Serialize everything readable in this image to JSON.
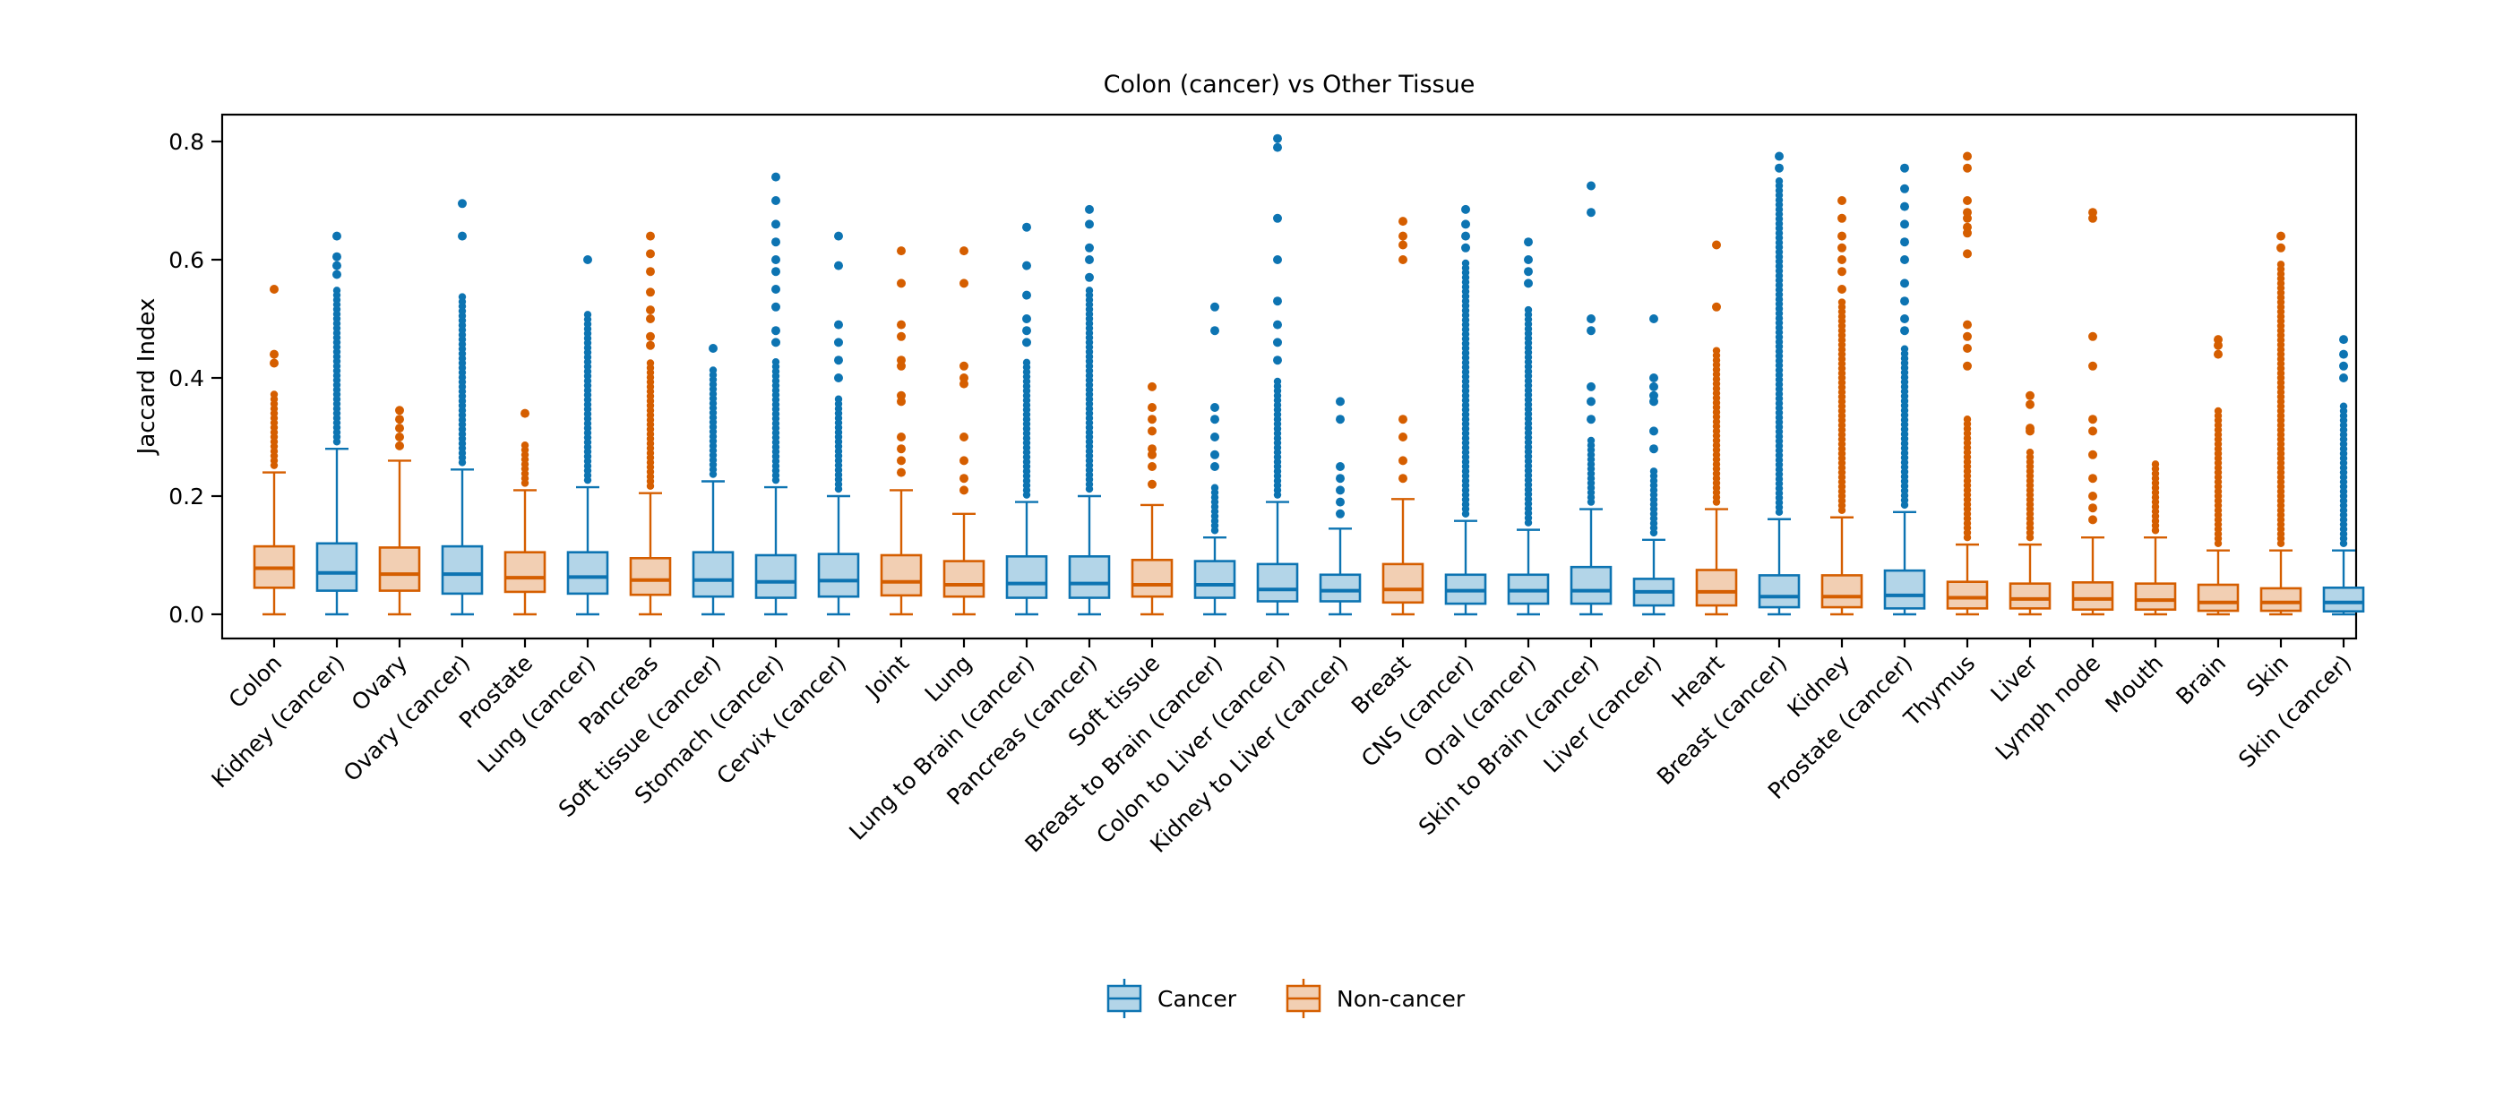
{
  "title": "Colon (cancer) vs Other Tissue",
  "ylabel": "Jaccard Index",
  "colors": {
    "cancer_edge": "#0d74b2",
    "cancer_fill": "#b3d5e8",
    "noncancer_edge": "#d55e00",
    "noncancer_fill": "#f2cfb3",
    "axis": "#000000",
    "background": "#ffffff"
  },
  "legend": {
    "items": [
      {
        "label": "Cancer",
        "group": "Cancer"
      },
      {
        "label": "Non-cancer",
        "group": "Non-cancer"
      }
    ]
  },
  "chart_data": {
    "type": "boxplot",
    "title": "Colon (cancer) vs Other Tissue",
    "xlabel": "",
    "ylabel": "Jaccard Index",
    "yticks": [
      0.0,
      0.2,
      0.4,
      0.6,
      0.8
    ],
    "ylim": [
      -0.041,
      0.845
    ],
    "grid": false,
    "legend_position": "bottom-center",
    "groups": {
      "Cancer": "blue",
      "Non-cancer": "orange"
    },
    "categories": [
      {
        "label": "Colon",
        "group": "Non-cancer",
        "whisker_low": 0,
        "q1": 0.045,
        "median": 0.078,
        "q3": 0.115,
        "whisker_high": 0.24,
        "outliers_dense_to": 0.38,
        "outliers": [
          0.425,
          0.44,
          0.55
        ]
      },
      {
        "label": "Kidney (cancer)",
        "group": "Cancer",
        "whisker_low": 0,
        "q1": 0.04,
        "median": 0.07,
        "q3": 0.12,
        "whisker_high": 0.28,
        "outliers_dense_to": 0.55,
        "outliers": [
          0.575,
          0.59,
          0.605,
          0.64
        ]
      },
      {
        "label": "Ovary",
        "group": "Non-cancer",
        "whisker_low": 0,
        "q1": 0.04,
        "median": 0.068,
        "q3": 0.113,
        "whisker_high": 0.26,
        "outliers_dense_to": 0.26,
        "outliers": [
          0.285,
          0.3,
          0.315,
          0.33,
          0.345
        ]
      },
      {
        "label": "Ovary (cancer)",
        "group": "Cancer",
        "whisker_low": 0,
        "q1": 0.035,
        "median": 0.068,
        "q3": 0.115,
        "whisker_high": 0.245,
        "outliers_dense_to": 0.54,
        "outliers": [
          0.64,
          0.695
        ]
      },
      {
        "label": "Prostate",
        "group": "Non-cancer",
        "whisker_low": 0,
        "q1": 0.038,
        "median": 0.062,
        "q3": 0.105,
        "whisker_high": 0.21,
        "outliers_dense_to": 0.29,
        "outliers": [
          0.34
        ]
      },
      {
        "label": "Lung (cancer)",
        "group": "Cancer",
        "whisker_low": 0,
        "q1": 0.035,
        "median": 0.063,
        "q3": 0.105,
        "whisker_high": 0.215,
        "outliers_dense_to": 0.51,
        "outliers": [
          0.6
        ]
      },
      {
        "label": "Pancreas",
        "group": "Non-cancer",
        "whisker_low": 0,
        "q1": 0.033,
        "median": 0.058,
        "q3": 0.095,
        "whisker_high": 0.205,
        "outliers_dense_to": 0.43,
        "outliers": [
          0.455,
          0.47,
          0.5,
          0.515,
          0.545,
          0.58,
          0.61,
          0.64
        ]
      },
      {
        "label": "Soft tissue (cancer)",
        "group": "Cancer",
        "whisker_low": 0,
        "q1": 0.03,
        "median": 0.058,
        "q3": 0.105,
        "whisker_high": 0.225,
        "outliers_dense_to": 0.42,
        "outliers": [
          0.45
        ]
      },
      {
        "label": "Stomach (cancer)",
        "group": "Cancer",
        "whisker_low": 0,
        "q1": 0.028,
        "median": 0.055,
        "q3": 0.1,
        "whisker_high": 0.215,
        "outliers_dense_to": 0.43,
        "outliers": [
          0.46,
          0.48,
          0.52,
          0.55,
          0.58,
          0.6,
          0.63,
          0.66,
          0.7,
          0.74
        ]
      },
      {
        "label": "Cervix (cancer)",
        "group": "Cancer",
        "whisker_low": 0,
        "q1": 0.03,
        "median": 0.057,
        "q3": 0.102,
        "whisker_high": 0.2,
        "outliers_dense_to": 0.37,
        "outliers": [
          0.4,
          0.43,
          0.46,
          0.49,
          0.59,
          0.64
        ]
      },
      {
        "label": "Joint",
        "group": "Non-cancer",
        "whisker_low": 0,
        "q1": 0.032,
        "median": 0.055,
        "q3": 0.1,
        "whisker_high": 0.21,
        "outliers_dense_to": 0.21,
        "outliers": [
          0.24,
          0.26,
          0.28,
          0.3,
          0.36,
          0.37,
          0.42,
          0.43,
          0.47,
          0.49,
          0.56,
          0.615
        ]
      },
      {
        "label": "Lung",
        "group": "Non-cancer",
        "whisker_low": 0,
        "q1": 0.03,
        "median": 0.05,
        "q3": 0.09,
        "whisker_high": 0.17,
        "outliers_dense_to": 0.17,
        "outliers": [
          0.21,
          0.23,
          0.26,
          0.3,
          0.39,
          0.4,
          0.42,
          0.56,
          0.615
        ]
      },
      {
        "label": "Lung to Brain (cancer)",
        "group": "Cancer",
        "whisker_low": 0,
        "q1": 0.028,
        "median": 0.052,
        "q3": 0.098,
        "whisker_high": 0.19,
        "outliers_dense_to": 0.43,
        "outliers": [
          0.46,
          0.48,
          0.5,
          0.54,
          0.59,
          0.655
        ]
      },
      {
        "label": "Pancreas (cancer)",
        "group": "Cancer",
        "whisker_low": 0,
        "q1": 0.028,
        "median": 0.052,
        "q3": 0.098,
        "whisker_high": 0.2,
        "outliers_dense_to": 0.55,
        "outliers": [
          0.57,
          0.6,
          0.62,
          0.66,
          0.685
        ]
      },
      {
        "label": "Soft tissue",
        "group": "Non-cancer",
        "whisker_low": 0,
        "q1": 0.03,
        "median": 0.05,
        "q3": 0.092,
        "whisker_high": 0.185,
        "outliers_dense_to": 0.185,
        "outliers": [
          0.22,
          0.25,
          0.27,
          0.28,
          0.31,
          0.33,
          0.35,
          0.385
        ]
      },
      {
        "label": "Breast to Brain (cancer)",
        "group": "Cancer",
        "whisker_low": 0,
        "q1": 0.028,
        "median": 0.05,
        "q3": 0.09,
        "whisker_high": 0.13,
        "outliers_dense_to": 0.22,
        "outliers": [
          0.25,
          0.27,
          0.3,
          0.33,
          0.35,
          0.48,
          0.52
        ]
      },
      {
        "label": "Colon to Liver (cancer)",
        "group": "Cancer",
        "whisker_low": 0,
        "q1": 0.022,
        "median": 0.042,
        "q3": 0.085,
        "whisker_high": 0.19,
        "outliers_dense_to": 0.4,
        "outliers": [
          0.43,
          0.46,
          0.49,
          0.53,
          0.6,
          0.67,
          0.79,
          0.805
        ]
      },
      {
        "label": "Kidney to Liver (cancer)",
        "group": "Cancer",
        "whisker_low": 0,
        "q1": 0.022,
        "median": 0.04,
        "q3": 0.067,
        "whisker_high": 0.145,
        "outliers_dense_to": 0.145,
        "outliers": [
          0.17,
          0.19,
          0.21,
          0.23,
          0.25,
          0.33,
          0.36
        ]
      },
      {
        "label": "Breast",
        "group": "Non-cancer",
        "whisker_low": 0,
        "q1": 0.02,
        "median": 0.042,
        "q3": 0.085,
        "whisker_high": 0.195,
        "outliers_dense_to": 0.195,
        "outliers": [
          0.23,
          0.26,
          0.3,
          0.33,
          0.6,
          0.625,
          0.64,
          0.665
        ]
      },
      {
        "label": "CNS (cancer)",
        "group": "Cancer",
        "whisker_low": 0,
        "q1": 0.018,
        "median": 0.04,
        "q3": 0.067,
        "whisker_high": 0.158,
        "outliers_dense_to": 0.6,
        "outliers": [
          0.62,
          0.64,
          0.66,
          0.685
        ]
      },
      {
        "label": "Oral (cancer)",
        "group": "Cancer",
        "whisker_low": 0,
        "q1": 0.018,
        "median": 0.04,
        "q3": 0.067,
        "whisker_high": 0.143,
        "outliers_dense_to": 0.52,
        "outliers": [
          0.56,
          0.58,
          0.6,
          0.63
        ]
      },
      {
        "label": "Skin to Brain (cancer)",
        "group": "Cancer",
        "whisker_low": 0,
        "q1": 0.018,
        "median": 0.04,
        "q3": 0.08,
        "whisker_high": 0.178,
        "outliers_dense_to": 0.3,
        "outliers": [
          0.33,
          0.36,
          0.385,
          0.48,
          0.5,
          0.68,
          0.725
        ]
      },
      {
        "label": "Liver (cancer)",
        "group": "Cancer",
        "whisker_low": 0,
        "q1": 0.015,
        "median": 0.038,
        "q3": 0.06,
        "whisker_high": 0.126,
        "outliers_dense_to": 0.25,
        "outliers": [
          0.28,
          0.31,
          0.36,
          0.37,
          0.385,
          0.4,
          0.5
        ]
      },
      {
        "label": "Heart",
        "group": "Non-cancer",
        "whisker_low": 0,
        "q1": 0.015,
        "median": 0.038,
        "q3": 0.075,
        "whisker_high": 0.178,
        "outliers_dense_to": 0.45,
        "outliers": [
          0.52,
          0.625
        ]
      },
      {
        "label": "Breast (cancer)",
        "group": "Cancer",
        "whisker_low": 0,
        "q1": 0.012,
        "median": 0.03,
        "q3": 0.066,
        "whisker_high": 0.161,
        "outliers_dense_to": 0.74,
        "outliers": [
          0.755,
          0.775
        ]
      },
      {
        "label": "Kidney",
        "group": "Non-cancer",
        "whisker_low": 0,
        "q1": 0.012,
        "median": 0.03,
        "q3": 0.066,
        "whisker_high": 0.164,
        "outliers_dense_to": 0.53,
        "outliers": [
          0.55,
          0.58,
          0.6,
          0.62,
          0.64,
          0.67,
          0.7
        ]
      },
      {
        "label": "Prostate (cancer)",
        "group": "Cancer",
        "whisker_low": 0,
        "q1": 0.01,
        "median": 0.032,
        "q3": 0.074,
        "whisker_high": 0.173,
        "outliers_dense_to": 0.45,
        "outliers": [
          0.48,
          0.5,
          0.53,
          0.56,
          0.6,
          0.63,
          0.66,
          0.69,
          0.72,
          0.755
        ]
      },
      {
        "label": "Thymus",
        "group": "Non-cancer",
        "whisker_low": 0,
        "q1": 0.01,
        "median": 0.028,
        "q3": 0.055,
        "whisker_high": 0.118,
        "outliers_dense_to": 0.335,
        "outliers": [
          0.42,
          0.45,
          0.47,
          0.49,
          0.61,
          0.645,
          0.655,
          0.67,
          0.68,
          0.7,
          0.755,
          0.775
        ]
      },
      {
        "label": "Liver",
        "group": "Non-cancer",
        "whisker_low": 0,
        "q1": 0.01,
        "median": 0.026,
        "q3": 0.052,
        "whisker_high": 0.118,
        "outliers_dense_to": 0.28,
        "outliers": [
          0.31,
          0.315,
          0.355,
          0.37
        ]
      },
      {
        "label": "Lymph node",
        "group": "Non-cancer",
        "whisker_low": 0,
        "q1": 0.008,
        "median": 0.026,
        "q3": 0.054,
        "whisker_high": 0.13,
        "outliers_dense_to": 0.13,
        "outliers": [
          0.16,
          0.18,
          0.2,
          0.23,
          0.27,
          0.31,
          0.33,
          0.42,
          0.47,
          0.67,
          0.68
        ]
      },
      {
        "label": "Mouth",
        "group": "Non-cancer",
        "whisker_low": 0,
        "q1": 0.008,
        "median": 0.024,
        "q3": 0.052,
        "whisker_high": 0.13,
        "outliers_dense_to": 0.26,
        "outliers": []
      },
      {
        "label": "Brain",
        "group": "Non-cancer",
        "whisker_low": 0,
        "q1": 0.006,
        "median": 0.02,
        "q3": 0.05,
        "whisker_high": 0.108,
        "outliers_dense_to": 0.35,
        "outliers": [
          0.44,
          0.455,
          0.465
        ]
      },
      {
        "label": "Skin",
        "group": "Non-cancer",
        "whisker_low": 0,
        "q1": 0.006,
        "median": 0.02,
        "q3": 0.044,
        "whisker_high": 0.108,
        "outliers_dense_to": 0.6,
        "outliers": [
          0.62,
          0.64
        ]
      },
      {
        "label": "Skin (cancer)",
        "group": "Cancer",
        "whisker_low": 0,
        "q1": 0.005,
        "median": 0.02,
        "q3": 0.045,
        "whisker_high": 0.108,
        "outliers_dense_to": 0.36,
        "outliers": [
          0.4,
          0.42,
          0.44,
          0.465
        ]
      }
    ]
  }
}
